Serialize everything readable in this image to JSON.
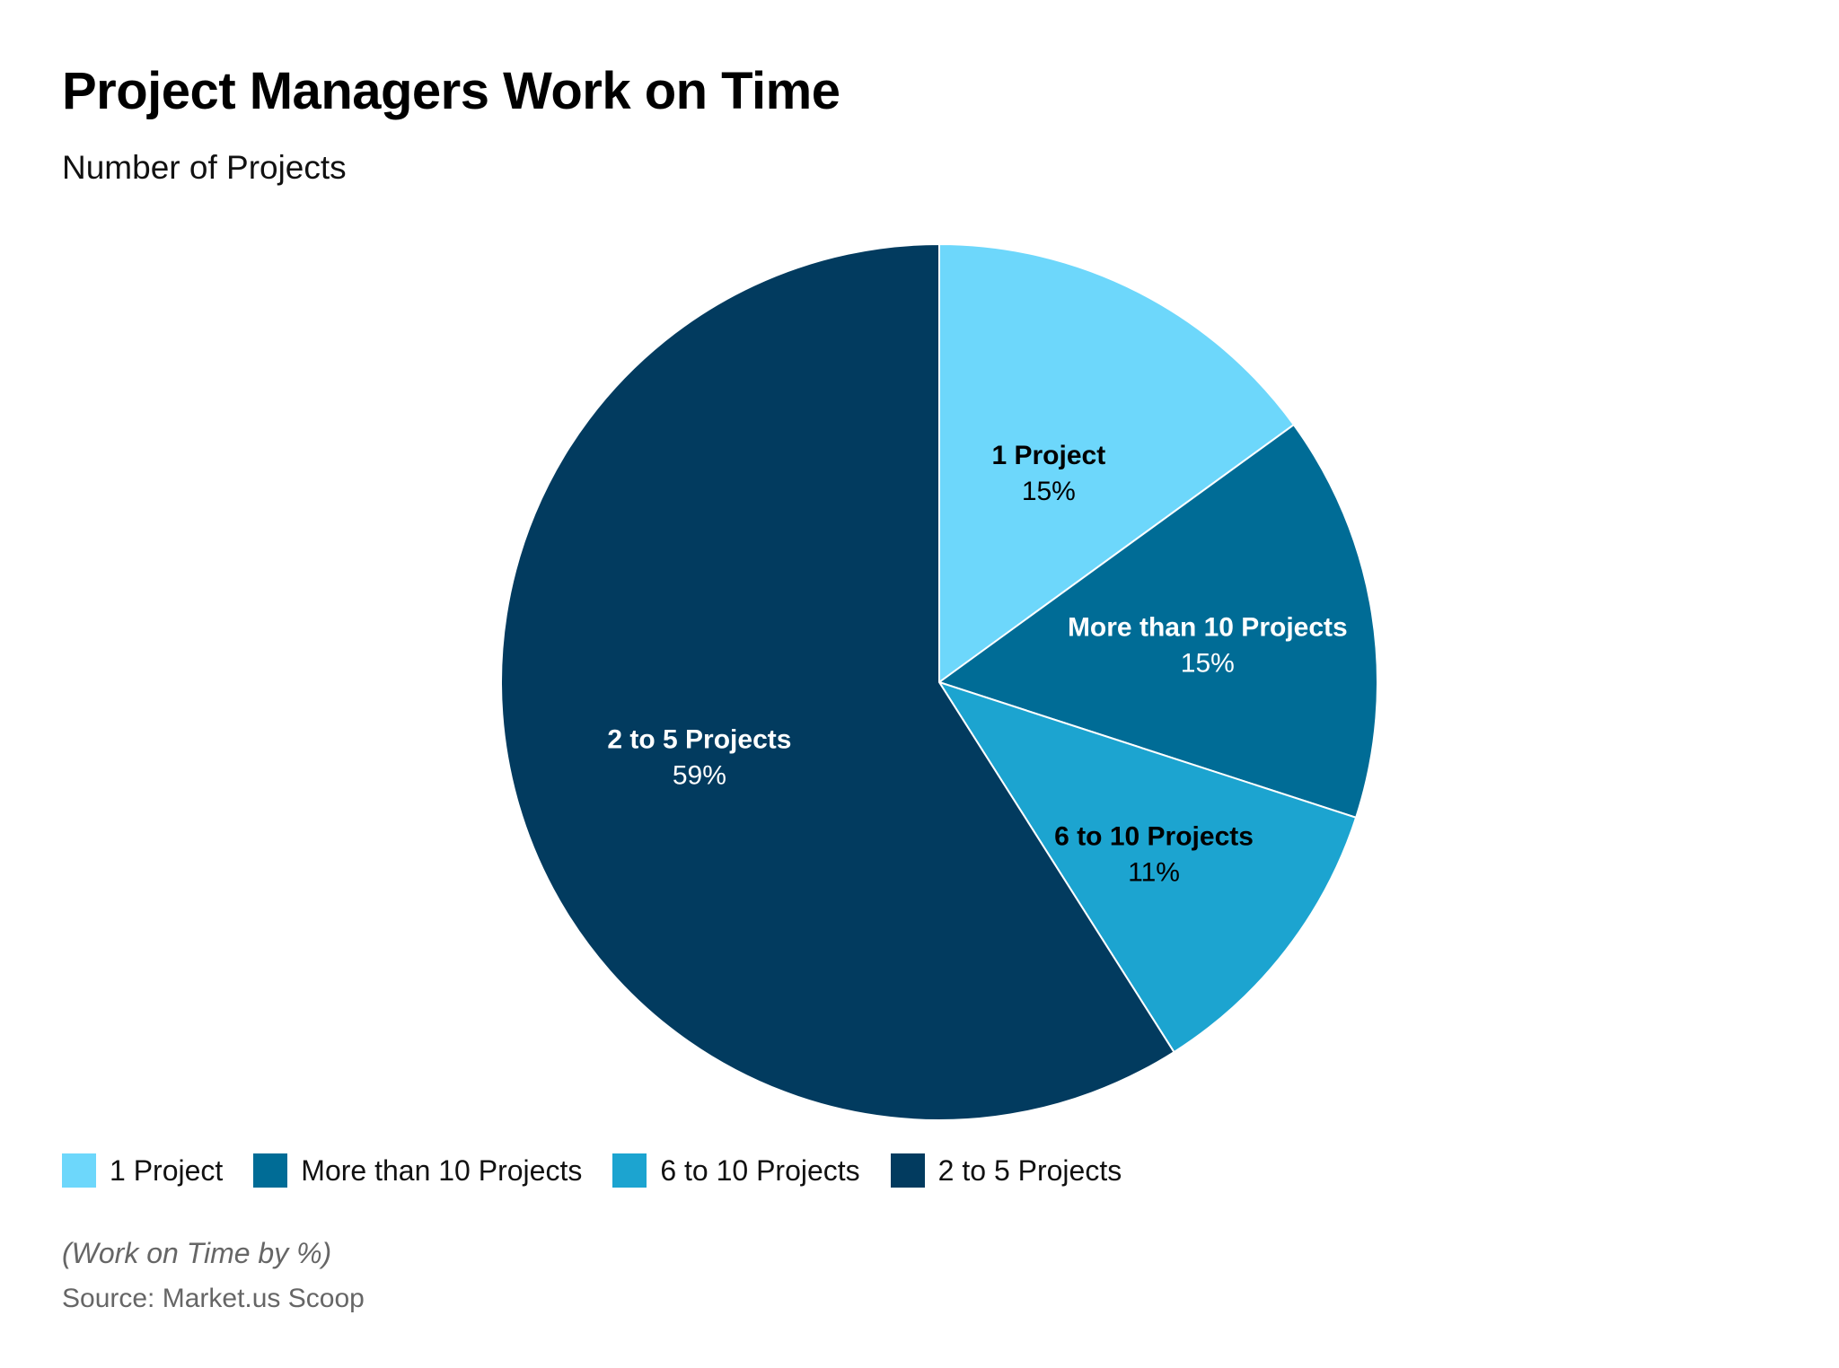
{
  "chart_data": {
    "type": "pie",
    "title": "Project Managers Work on Time",
    "subtitle": "Number of Projects",
    "slices": [
      {
        "label": "1 Project",
        "value": 15,
        "value_label": "15%",
        "color": "#6dd7fb",
        "label_color": "#000000"
      },
      {
        "label": "More than 10 Projects",
        "value": 15,
        "value_label": "15%",
        "color": "#006c96",
        "label_color": "#ffffff"
      },
      {
        "label": "6 to 10 Projects",
        "value": 11,
        "value_label": "11%",
        "color": "#1ca4d0",
        "label_color": "#000000"
      },
      {
        "label": "2 to 5 Projects",
        "value": 59,
        "value_label": "59%",
        "color": "#023b5f",
        "label_color": "#ffffff"
      }
    ],
    "start_angle_deg": 0,
    "direction": "clockwise",
    "legend_position": "bottom-left",
    "note": "(Work on Time by %)",
    "source": "Source: Market.us Scoop"
  }
}
